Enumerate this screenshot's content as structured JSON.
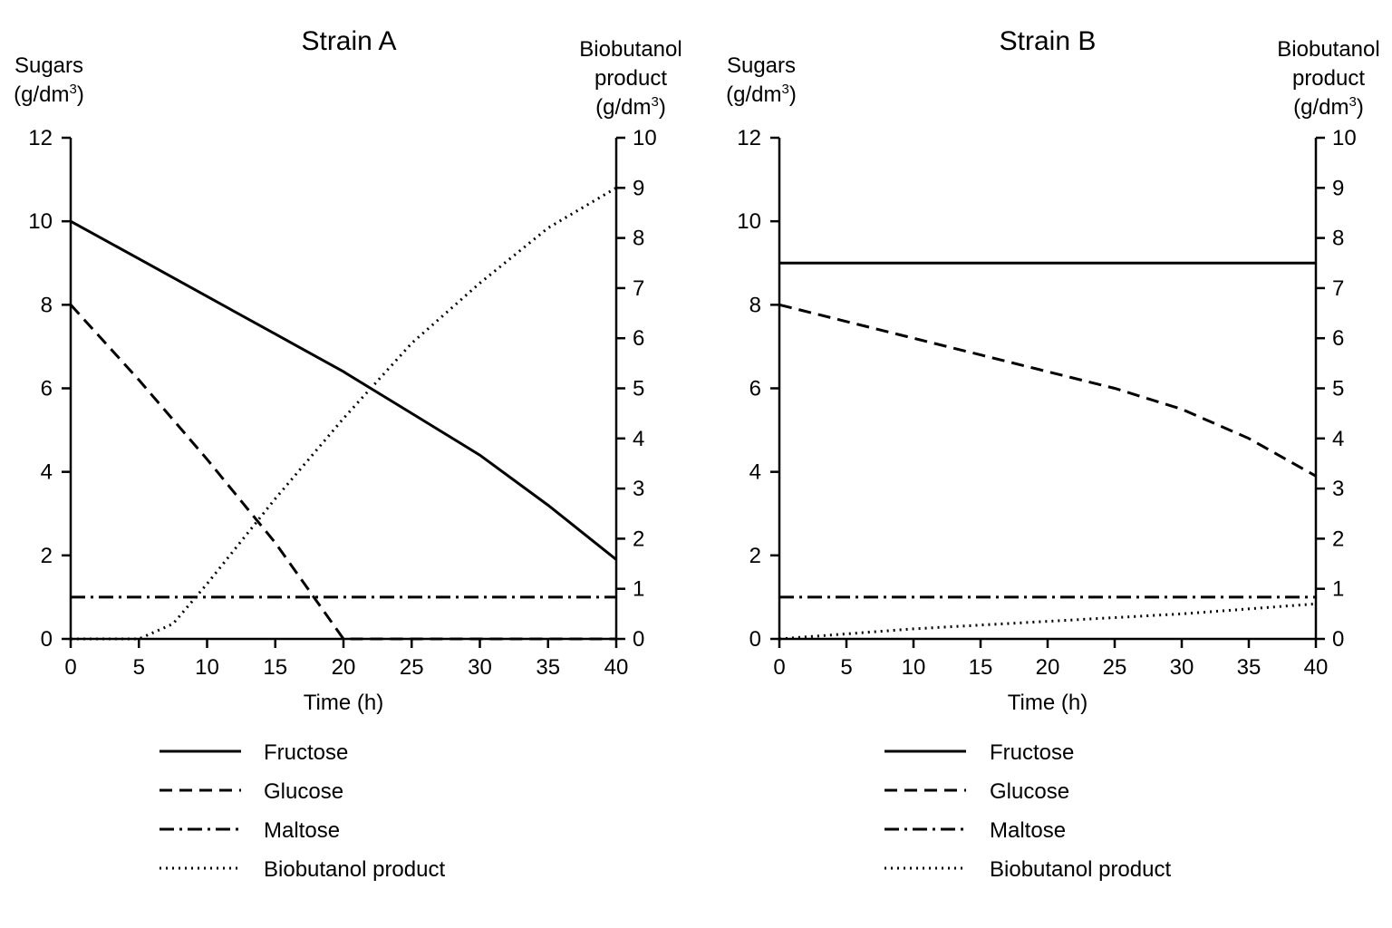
{
  "chart_data": [
    {
      "type": "line",
      "title": "Strain A",
      "xlabel": "Time (h)",
      "ylabel_left": [
        "Sugars",
        "(g/dm",
        "3",
        ")"
      ],
      "ylabel_right": [
        "Biobutanol",
        "product",
        "(g/dm",
        "3",
        ")"
      ],
      "xlim": [
        0,
        40
      ],
      "xticks": [
        0,
        5,
        10,
        15,
        20,
        25,
        30,
        35,
        40
      ],
      "ylim_left": [
        0,
        12
      ],
      "yticks_left": [
        0,
        2,
        4,
        6,
        8,
        10,
        12
      ],
      "ylim_right": [
        0,
        10
      ],
      "yticks_right": [
        0,
        1,
        2,
        3,
        4,
        5,
        6,
        7,
        8,
        9,
        10
      ],
      "series": [
        {
          "name": "Fructose",
          "axis": "left",
          "dash": "solid",
          "x": [
            0,
            5,
            10,
            15,
            20,
            25,
            30,
            35,
            40
          ],
          "y": [
            10,
            9.1,
            8.2,
            7.3,
            6.4,
            5.4,
            4.4,
            3.2,
            1.9
          ]
        },
        {
          "name": "Glucose",
          "axis": "left",
          "dash": "dashed",
          "x": [
            0,
            5,
            10,
            15,
            20,
            25,
            30,
            35,
            40
          ],
          "y": [
            8,
            6.2,
            4.3,
            2.3,
            0,
            0,
            0,
            0,
            0
          ]
        },
        {
          "name": "Maltose",
          "axis": "left",
          "dash": "dashdot",
          "x": [
            0,
            40
          ],
          "y": [
            1,
            1
          ]
        },
        {
          "name": "Biobutanol product",
          "axis": "right",
          "dash": "dotted",
          "x": [
            0,
            5,
            7.5,
            10,
            15,
            20,
            25,
            30,
            35,
            40
          ],
          "y": [
            0,
            0,
            0.3,
            1.1,
            2.8,
            4.4,
            5.9,
            7.1,
            8.2,
            9.0
          ]
        }
      ]
    },
    {
      "type": "line",
      "title": "Strain B",
      "xlabel": "Time (h)",
      "ylabel_left": [
        "Sugars",
        "(g/dm",
        "3",
        ")"
      ],
      "ylabel_right": [
        "Biobutanol",
        "product",
        "(g/dm",
        "3",
        ")"
      ],
      "xlim": [
        0,
        40
      ],
      "xticks": [
        0,
        5,
        10,
        15,
        20,
        25,
        30,
        35,
        40
      ],
      "ylim_left": [
        0,
        12
      ],
      "yticks_left": [
        0,
        2,
        4,
        6,
        8,
        10,
        12
      ],
      "ylim_right": [
        0,
        10
      ],
      "yticks_right": [
        0,
        1,
        2,
        3,
        4,
        5,
        6,
        7,
        8,
        9,
        10
      ],
      "series": [
        {
          "name": "Fructose",
          "axis": "left",
          "dash": "solid",
          "x": [
            0,
            40
          ],
          "y": [
            9,
            9
          ]
        },
        {
          "name": "Glucose",
          "axis": "left",
          "dash": "dashed",
          "x": [
            0,
            5,
            10,
            15,
            20,
            25,
            30,
            35,
            40
          ],
          "y": [
            8,
            7.6,
            7.2,
            6.8,
            6.4,
            6.0,
            5.5,
            4.8,
            3.9
          ]
        },
        {
          "name": "Maltose",
          "axis": "left",
          "dash": "dashdot",
          "x": [
            0,
            40
          ],
          "y": [
            1,
            1
          ]
        },
        {
          "name": "Biobutanol product",
          "axis": "right",
          "dash": "dotted",
          "x": [
            0,
            10,
            20,
            30,
            40
          ],
          "y": [
            0,
            0.2,
            0.35,
            0.5,
            0.7
          ]
        }
      ]
    }
  ]
}
